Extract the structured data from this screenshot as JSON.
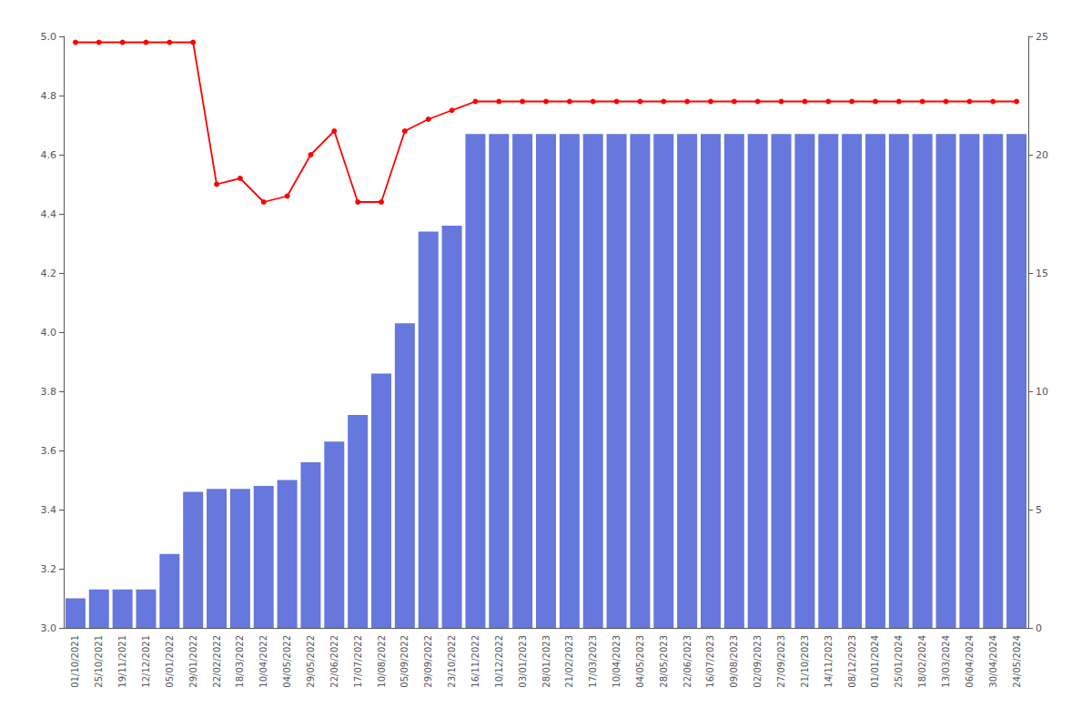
{
  "chart_data": {
    "type": "bar",
    "categories": [
      "01/10/2021",
      "25/10/2021",
      "19/11/2021",
      "12/12/2021",
      "05/01/2022",
      "29/01/2022",
      "22/02/2022",
      "18/03/2022",
      "10/04/2022",
      "04/05/2022",
      "29/05/2022",
      "22/06/2022",
      "17/07/2022",
      "10/08/2022",
      "05/09/2022",
      "29/09/2022",
      "23/10/2022",
      "16/11/2022",
      "10/12/2022",
      "03/01/2023",
      "28/01/2023",
      "21/02/2023",
      "17/03/2023",
      "10/04/2023",
      "04/05/2023",
      "28/05/2023",
      "22/06/2023",
      "16/07/2023",
      "09/08/2023",
      "02/09/2023",
      "27/09/2023",
      "21/10/2023",
      "14/11/2023",
      "08/12/2023",
      "01/01/2024",
      "25/01/2024",
      "18/02/2024",
      "13/03/2024",
      "06/04/2024",
      "30/04/2024",
      "24/05/2024"
    ],
    "series": [
      {
        "type": "bar",
        "color": "#6677dd",
        "values": [
          3.1,
          3.13,
          3.13,
          3.13,
          3.25,
          3.46,
          3.47,
          3.47,
          3.48,
          3.5,
          3.56,
          3.63,
          3.72,
          3.86,
          4.03,
          4.34,
          4.36,
          4.67,
          4.67,
          4.67,
          4.67,
          4.67,
          4.67,
          4.67,
          4.67,
          4.67,
          4.67,
          4.67,
          4.67,
          4.67,
          4.67,
          4.67,
          4.67,
          4.67,
          4.67,
          4.67,
          4.67,
          4.67,
          4.67,
          4.67,
          4.67
        ]
      },
      {
        "type": "line",
        "color": "#ff0000",
        "marker": "circle",
        "values": [
          4.98,
          4.98,
          4.98,
          4.98,
          4.98,
          4.98,
          4.5,
          4.52,
          4.44,
          4.46,
          4.6,
          4.68,
          4.44,
          4.44,
          4.68,
          4.72,
          4.75,
          4.78,
          4.78,
          4.78,
          4.78,
          4.78,
          4.78,
          4.78,
          4.78,
          4.78,
          4.78,
          4.78,
          4.78,
          4.78,
          4.78,
          4.78,
          4.78,
          4.78,
          4.78,
          4.78,
          4.78,
          4.78,
          4.78,
          4.78,
          4.78
        ]
      }
    ],
    "ylim": [
      3.0,
      5.0
    ],
    "yticks": [
      {
        "value": 3.0,
        "label": "3.0"
      },
      3.2,
      3.4,
      3.6,
      3.8,
      {
        "value": 4.0,
        "label": "4.0"
      },
      4.2,
      4.4,
      4.6,
      4.8,
      {
        "value": 5.0,
        "label": "5.0"
      }
    ],
    "y2lim": [
      0,
      25
    ],
    "y2ticks": [
      0,
      5,
      10,
      15,
      20,
      25
    ],
    "grid": false
  }
}
